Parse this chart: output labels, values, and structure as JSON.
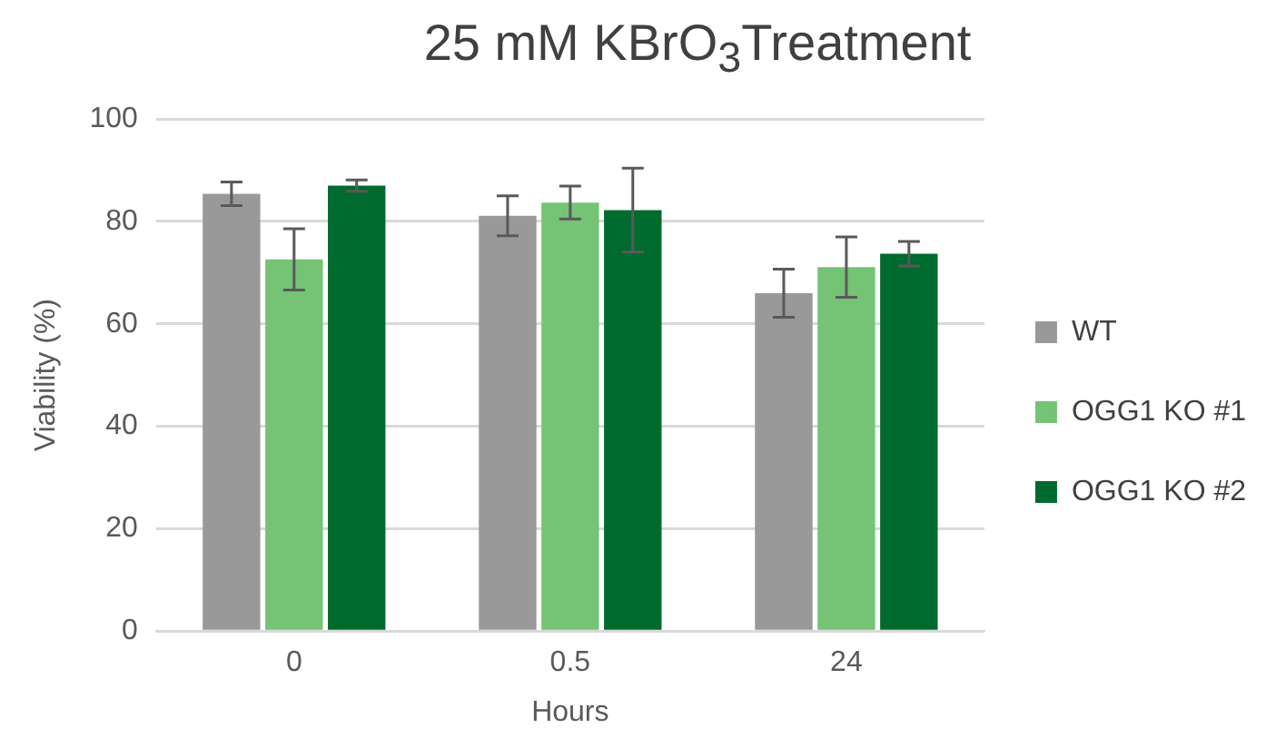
{
  "chart_data": {
    "type": "bar",
    "title": "25 mM KBrO$_{3}$Treatment",
    "xlabel": "Hours",
    "ylabel": "Viability (%)",
    "categories": [
      "0",
      "0.5",
      "24"
    ],
    "series": [
      {
        "name": "WT",
        "color": "#999999",
        "values": [
          85.4,
          81.1,
          66.0
        ],
        "errors": [
          2.3,
          3.9,
          4.7
        ]
      },
      {
        "name": "OGG1 KO #1",
        "color": "#75c375",
        "values": [
          72.6,
          83.7,
          71.1
        ],
        "errors": [
          6.0,
          3.2,
          5.9
        ]
      },
      {
        "name": "OGG1 KO #2",
        "color": "#006b2e",
        "values": [
          87.0,
          82.2,
          73.7
        ],
        "errors": [
          1.1,
          8.2,
          2.4
        ]
      }
    ],
    "ylim": [
      0,
      100
    ],
    "yticks": [
      0,
      20,
      40,
      60,
      80,
      100
    ],
    "grid": "y",
    "legend": "right"
  }
}
